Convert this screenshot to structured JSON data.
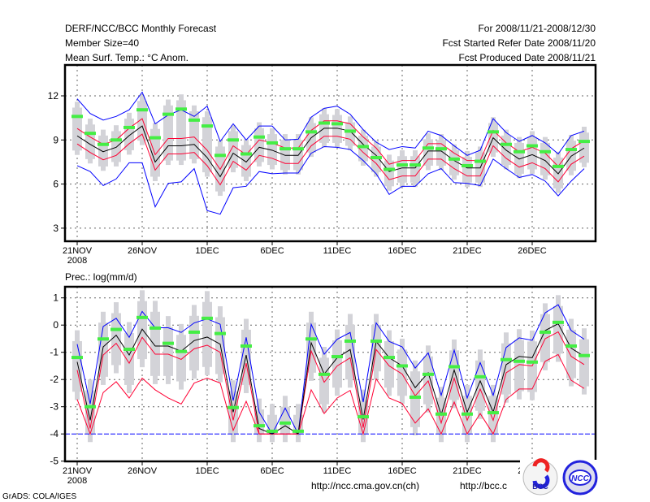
{
  "header": {
    "title": "DERF/NCC/BCC Monthly Forecast",
    "member_size": "Member Size=40",
    "variable": "Mean Surf. Temp.: °C Anom.",
    "period": "For 2008/11/21-2008/12/30",
    "started": "Fcst Started Refer Date 2008/11/20",
    "produced": "Fcst Produced Date 2008/11/21"
  },
  "footer": {
    "url_ncc": "http://ncc.cma.gov.cn(ch)",
    "url_bcc": "http://bcc.c",
    "grads": "GrADS: COLA/IGES",
    "logo_bcc": "BCC",
    "logo_ncc": "NCC"
  },
  "colors": {
    "mean": "#000000",
    "inner": "#ff0033",
    "outer": "#0000ff",
    "obs": "#44ee44",
    "spread": "#d3d3d8"
  },
  "chart_data": [
    {
      "type": "line",
      "title": "Mean Surf. Temp.: °C Anom.",
      "ylabel": "°C",
      "ylim": [
        2,
        14
      ],
      "yticks": [
        3,
        6,
        9,
        12
      ],
      "xtick_labels": [
        "21NOV",
        "26NOV",
        "1DEC",
        "6DEC",
        "11DEC",
        "16DEC",
        "21DEC",
        "26DEC"
      ],
      "xtick_year": "2008",
      "x": "days 2008/11/21 - 2008/12/30 (40 days)",
      "grid": true,
      "series": [
        {
          "name": "ensemble_mean",
          "color": "black",
          "values": [
            9.28,
            8.7,
            8.2,
            8.5,
            9.3,
            9.95,
            7.5,
            8.6,
            8.6,
            8.7,
            7.8,
            6.5,
            8.1,
            7.5,
            8.5,
            8.3,
            7.95,
            7.95,
            9.15,
            9.8,
            9.8,
            9.6,
            8.7,
            7.95,
            6.85,
            7.1,
            7.1,
            8.25,
            8.25,
            7.6,
            7.1,
            7.1,
            9.15,
            8.3,
            7.7,
            8.0,
            7.6,
            6.7,
            7.9,
            8.45
          ]
        },
        {
          "name": "upper_bound",
          "color": "blue",
          "values": [
            11.8,
            10.8,
            10.35,
            10.6,
            11.05,
            12.25,
            10.1,
            10.7,
            11.05,
            10.6,
            11.3,
            8.9,
            10.1,
            9.0,
            9.95,
            9.95,
            9.0,
            9.05,
            10.55,
            11.15,
            11.3,
            10.75,
            9.7,
            8.85,
            8.35,
            8.55,
            8.45,
            9.6,
            9.3,
            8.6,
            7.95,
            8.3,
            10.45,
            9.5,
            8.9,
            9.3,
            8.8,
            8.05,
            9.3,
            9.6
          ]
        },
        {
          "name": "lower_bound",
          "color": "blue",
          "values": [
            7.25,
            6.85,
            5.9,
            6.35,
            7.45,
            7.45,
            4.45,
            6.05,
            6.15,
            7.05,
            4.2,
            3.95,
            5.75,
            5.85,
            6.85,
            6.7,
            6.75,
            6.75,
            8.1,
            8.55,
            8.5,
            8.35,
            7.6,
            6.7,
            5.3,
            5.85,
            5.85,
            6.7,
            7.05,
            6.1,
            6.05,
            5.9,
            7.7,
            7.05,
            6.45,
            6.65,
            6.2,
            5.2,
            6.2,
            7.05
          ]
        },
        {
          "name": "observed_or_control",
          "color": "green",
          "values": [
            10.6,
            9.45,
            8.7,
            9.0,
            9.85,
            11.05,
            9.15,
            10.75,
            11.1,
            10.35,
            9.95,
            7.95,
            9.0,
            8.05,
            9.2,
            8.8,
            8.4,
            8.4,
            9.55,
            10.15,
            10.1,
            9.6,
            8.55,
            7.8,
            7.0,
            7.3,
            7.3,
            8.45,
            8.4,
            7.7,
            7.25,
            7.55,
            9.55,
            8.7,
            8.2,
            8.6,
            8.2,
            7.2,
            8.35,
            8.9
          ]
        }
      ]
    },
    {
      "type": "line",
      "title": "Prec.: log(mm/d)",
      "ylabel": "log(mm/d)",
      "ylim": [
        -5,
        1.4
      ],
      "yticks": [
        -5,
        -4,
        -3,
        -2,
        -1,
        0,
        1
      ],
      "xtick_labels": [
        "21NOV",
        "26NOV",
        "1DEC",
        "6DEC",
        "11DEC",
        "16DEC",
        "21DEC",
        "26DEC"
      ],
      "xtick_year": "2008",
      "x": "days 2008/11/21 - 2008/12/30 (40 days)",
      "grid": true,
      "series": [
        {
          "name": "ensemble_mean",
          "color": "black",
          "values": [
            -1.35,
            -3.5,
            -0.8,
            -0.37,
            -1.1,
            -0.15,
            -0.77,
            -0.77,
            -0.96,
            -0.57,
            -0.44,
            -0.7,
            -3.2,
            -1.1,
            -3.8,
            -4,
            -3.7,
            -4,
            -0.65,
            -1.8,
            -1.2,
            -0.9,
            -3.47,
            -0.6,
            -1.2,
            -1.5,
            -2.3,
            -1.75,
            -3.3,
            -1.65,
            -3.2,
            -2.05,
            -3.2,
            -1.45,
            -1.15,
            -1.2,
            -0.2,
            0.05,
            -0.85,
            -1.15
          ]
        },
        {
          "name": "upper_bound",
          "color": "blue",
          "values": [
            -0.7,
            -2.9,
            -0.05,
            0.25,
            -0.45,
            0.5,
            -0.1,
            -0.1,
            -0.27,
            0.08,
            0.23,
            0.03,
            -2.78,
            -0.45,
            -3.2,
            -4,
            -3.05,
            -4,
            0.03,
            -1.07,
            -0.52,
            -0.27,
            -2.83,
            0.08,
            -0.6,
            -0.8,
            -1.58,
            -1.02,
            -2.58,
            -0.92,
            -2.68,
            -1.38,
            -2.58,
            -0.82,
            -0.47,
            -0.56,
            0.45,
            0.75,
            -0.2,
            -0.52
          ]
        },
        {
          "name": "lower_red",
          "color": "red",
          "values": [
            -2.73,
            -4,
            -2.48,
            -2.08,
            -2.68,
            -1.95,
            -2.38,
            -2.68,
            -2.9,
            -2.13,
            -1.95,
            -2.13,
            -3.87,
            -2.8,
            -4,
            -4,
            -4,
            -4,
            -2.38,
            -3.25,
            -2.68,
            -2.4,
            -4,
            -1.98,
            -2.68,
            -2.88,
            -3.6,
            -3.08,
            -4,
            -2.83,
            -4,
            -3.25,
            -4,
            -2.73,
            -2.35,
            -2.35,
            -1.33,
            -1.08,
            -2.03,
            -2.33
          ]
        },
        {
          "name": "observed_or_control",
          "color": "green",
          "values": [
            -1.19,
            -3.0,
            -0.51,
            -0.16,
            -0.89,
            0.28,
            -0.11,
            -0.67,
            -0.97,
            -0.26,
            0.25,
            -0.31,
            -3.03,
            -0.77,
            -3.7,
            -3.9,
            -3.6,
            -3.9,
            -0.51,
            -1.81,
            -1.16,
            -0.59,
            -3.37,
            -0.59,
            -1.19,
            -1.5,
            -2.65,
            -1.81,
            -3.27,
            -1.53,
            -3.27,
            -1.9,
            -3.22,
            -1.27,
            -1.33,
            -1.36,
            -0.26,
            0.1,
            -0.77,
            -1.12
          ]
        },
        {
          "name": "lower_limit",
          "color": "blue",
          "values": [
            -4
          ]
        }
      ]
    }
  ]
}
